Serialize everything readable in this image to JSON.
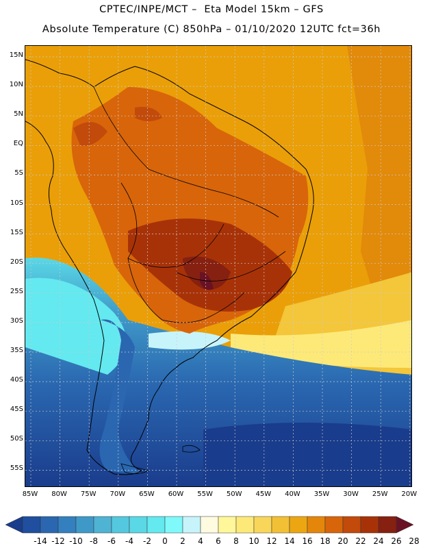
{
  "header": {
    "title_line1": "CPTEC/INPE/MCT –  Eta Model 15km – GFS",
    "title_line2": "Absolute Temperature (C) 850hPa – 01/10/2020 12UTC fct=36h"
  },
  "map": {
    "lat_labels": [
      "15N",
      "10N",
      "5N",
      "EQ",
      "5S",
      "10S",
      "15S",
      "20S",
      "25S",
      "30S",
      "35S",
      "40S",
      "45S",
      "50S",
      "55S"
    ],
    "lon_labels": [
      "85W",
      "80W",
      "75W",
      "70W",
      "65W",
      "60W",
      "55W",
      "50W",
      "45W",
      "40W",
      "35W",
      "30W",
      "25W",
      "20W"
    ],
    "fill_color_ocean_north": "#ea9f08",
    "fill_color_cold_south": "#1f4a9a"
  },
  "colorbar": {
    "labels": [
      "-14",
      "-12",
      "-10",
      "-8",
      "-6",
      "-4",
      "-2",
      "0",
      "2",
      "4",
      "6",
      "8",
      "10",
      "12",
      "14",
      "16",
      "18",
      "20",
      "22",
      "24",
      "26",
      "28"
    ],
    "colors": [
      "#1a3c8c",
      "#1f4f9e",
      "#2a67b0",
      "#3480be",
      "#3f99c8",
      "#4fb3d4",
      "#54c8de",
      "#5ad8e6",
      "#63e9ef",
      "#7ff9fa",
      "#c7f4fb",
      "#fffbe0",
      "#fff79a",
      "#fde978",
      "#f8d65a",
      "#f2c035",
      "#eca612",
      "#e4860a",
      "#d8650a",
      "#c24a0a",
      "#a83208",
      "#862010",
      "#6a1224"
    ]
  }
}
